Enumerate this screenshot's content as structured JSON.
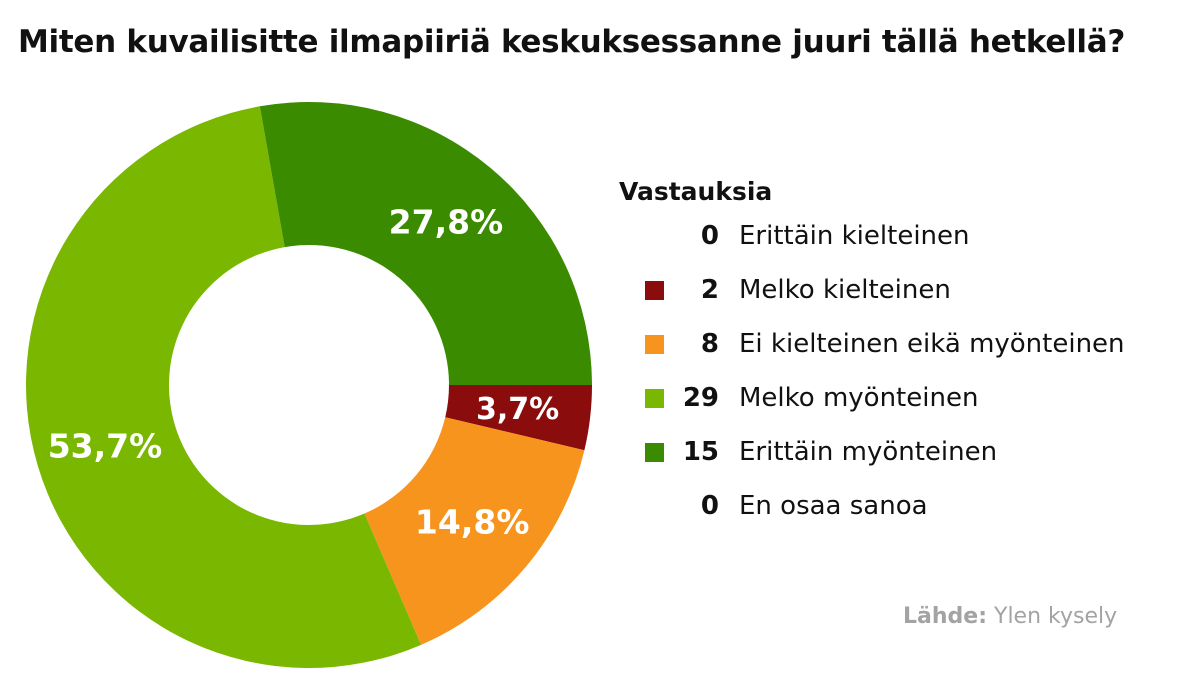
{
  "chart_data": {
    "type": "pie",
    "title": "Miten kuvailisitte ilmapiiriä keskuksessanne juuri tällä hetkellä?",
    "legend_title": "Vastauksia",
    "categories": [
      "Erittäin kielteinen",
      "Melko kielteinen",
      "Ei kielteinen eikä myönteinen",
      "Melko myönteinen",
      "Erittäin myönteinen",
      "En osaa sanoa"
    ],
    "values": [
      0,
      2,
      8,
      29,
      15,
      0
    ],
    "labels": [
      "",
      "3,7%",
      "14,8%",
      "53,7%",
      "27,8%",
      ""
    ],
    "colors": [
      "#ffffff",
      "#8a0c0c",
      "#f7941d",
      "#7ab700",
      "#3b8b00",
      "#ffffff"
    ],
    "source_label": "Lähde:",
    "source_text": "Ylen kysely"
  }
}
